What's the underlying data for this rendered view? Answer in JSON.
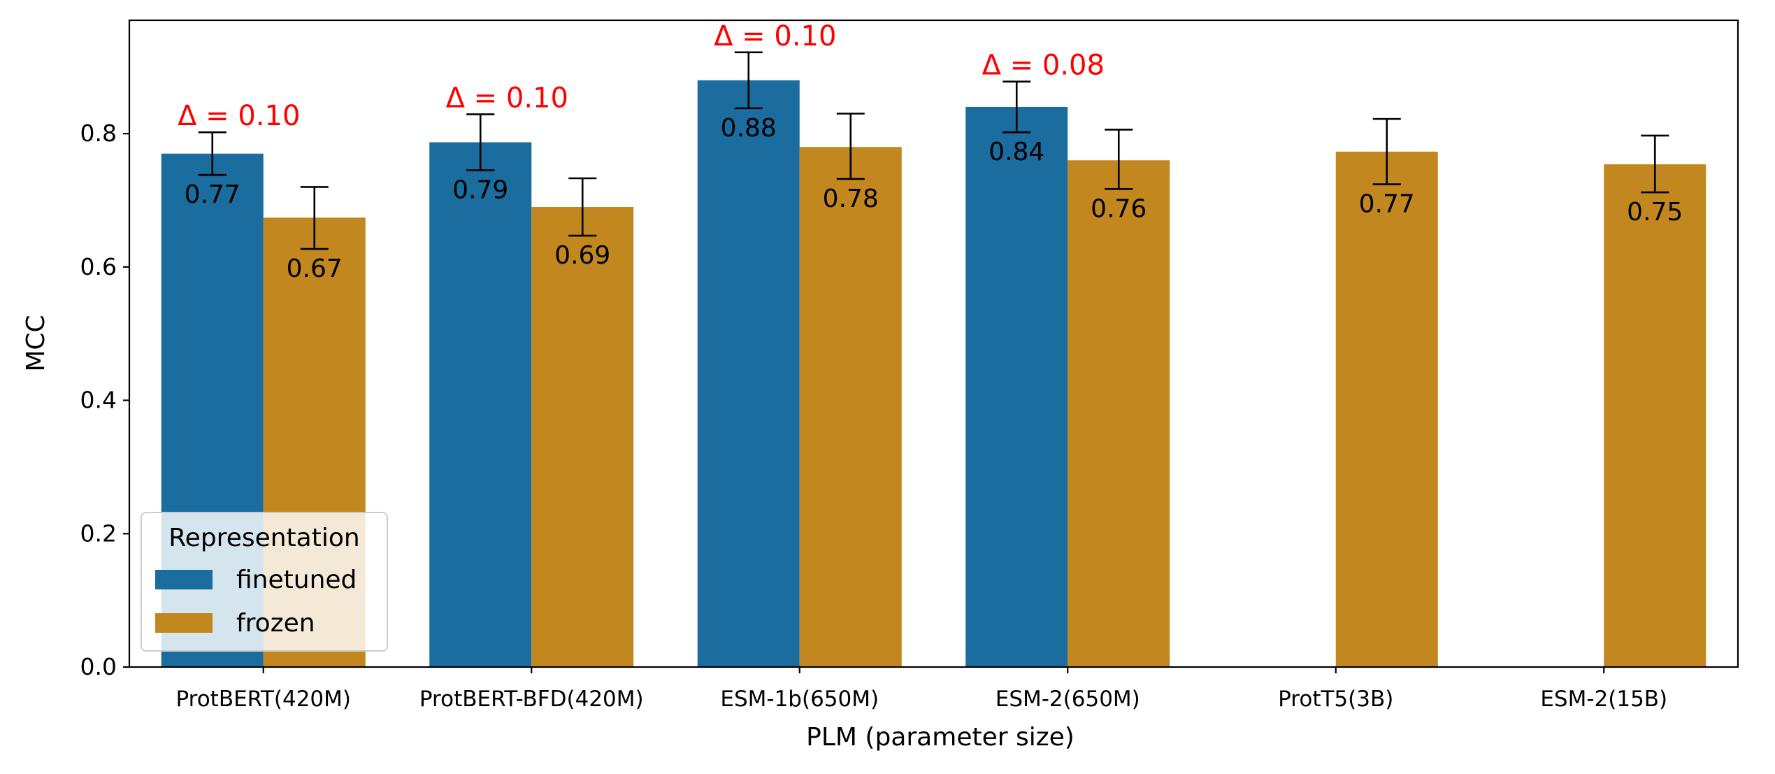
{
  "chart_data": {
    "type": "bar",
    "title": "",
    "xlabel": "PLM (parameter size)",
    "ylabel": "MCC",
    "ylim": [
      0,
      0.97
    ],
    "yticks": [
      "0.0",
      "0.2",
      "0.4",
      "0.6",
      "0.8"
    ],
    "categories": [
      "ProtBERT(420M)",
      "ProtBERT-BFD(420M)",
      "ESM-1b(650M)",
      "ESM-2(650M)",
      "ProtT5(3B)",
      "ESM-2(15B)"
    ],
    "series": [
      {
        "name": "finetuned",
        "color": "#1a6d9e",
        "values": [
          0.77,
          0.787,
          0.88,
          0.84,
          null,
          null
        ],
        "labels": [
          "0.77",
          "0.79",
          "0.88",
          "0.84",
          "",
          ""
        ],
        "err_low": [
          0.738,
          0.745,
          0.838,
          0.802,
          null,
          null
        ],
        "err_high": [
          0.802,
          0.829,
          0.922,
          0.878,
          null,
          null
        ]
      },
      {
        "name": "frozen",
        "color": "#c2871f",
        "values": [
          0.674,
          0.69,
          0.78,
          0.76,
          0.773,
          0.754
        ],
        "labels": [
          "0.67",
          "0.69",
          "0.78",
          "0.76",
          "0.77",
          "0.75"
        ],
        "err_low": [
          0.627,
          0.647,
          0.732,
          0.717,
          0.724,
          0.712
        ],
        "err_high": [
          0.72,
          0.733,
          0.83,
          0.806,
          0.822,
          0.797
        ]
      }
    ],
    "annotations": [
      "Δ = 0.10",
      "Δ = 0.10",
      "Δ = 0.10",
      "Δ = 0.08",
      "",
      ""
    ],
    "annotation_color": "#ff0000",
    "legend": {
      "title": "Representation",
      "placement": "lower-left",
      "entries": [
        "finetuned",
        "frozen"
      ]
    },
    "grid": false
  }
}
